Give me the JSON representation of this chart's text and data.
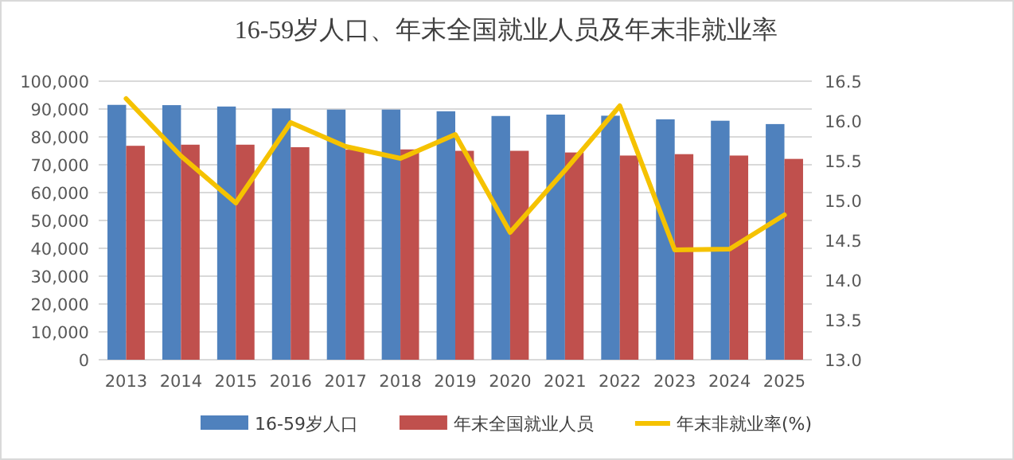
{
  "chart_data": {
    "type": "bar",
    "title": "16-59岁人口、年末全国就业人员及年末非就业率",
    "categories": [
      "2013",
      "2014",
      "2015",
      "2016",
      "2017",
      "2018",
      "2019",
      "2020",
      "2021",
      "2022",
      "2023",
      "2024",
      "2025"
    ],
    "series": [
      {
        "name": "16-59岁人口",
        "color": "#4f81bd",
        "values": [
          91500,
          91400,
          90900,
          90200,
          89800,
          89800,
          89200,
          87500,
          88000,
          87600,
          86300,
          85800,
          84600
        ]
      },
      {
        "name": "年末全国就业人员",
        "color": "#c0504d",
        "values": [
          76800,
          77200,
          77200,
          76300,
          75400,
          75500,
          75000,
          75000,
          74400,
          73300,
          73800,
          73300,
          72100
        ]
      },
      {
        "name": "年末非就业率(%)",
        "type": "line",
        "axis": "y2",
        "color": "#f5c200",
        "values": [
          16.28,
          15.56,
          14.97,
          15.98,
          15.68,
          15.53,
          15.83,
          14.6,
          15.38,
          16.19,
          14.38,
          14.39,
          14.82
        ]
      }
    ],
    "ylim": [
      0,
      100000
    ],
    "yticks": [
      {
        "value": 0,
        "label": "0"
      },
      {
        "value": 10000,
        "label": "10,000"
      },
      {
        "value": 20000,
        "label": "20,000"
      },
      {
        "value": 30000,
        "label": "30,000"
      },
      {
        "value": 40000,
        "label": "40,000"
      },
      {
        "value": 50000,
        "label": "50,000"
      },
      {
        "value": 60000,
        "label": "60,000"
      },
      {
        "value": 70000,
        "label": "70,000"
      },
      {
        "value": 80000,
        "label": "80,000"
      },
      {
        "value": 90000,
        "label": "90,000"
      },
      {
        "value": 100000,
        "label": "100,000"
      }
    ],
    "y2lim": [
      13,
      16.5
    ],
    "y2ticks": [
      {
        "value": 13,
        "label": "13.0"
      },
      {
        "value": 13.5,
        "label": "13.5"
      },
      {
        "value": 14,
        "label": "14.0"
      },
      {
        "value": 14.5,
        "label": "14.5"
      },
      {
        "value": 15,
        "label": "15.0"
      },
      {
        "value": 15.5,
        "label": "15.5"
      },
      {
        "value": 16,
        "label": "16.0"
      },
      {
        "value": 16.5,
        "label": "16.5"
      }
    ],
    "grid": "y",
    "legend": "bottom"
  }
}
